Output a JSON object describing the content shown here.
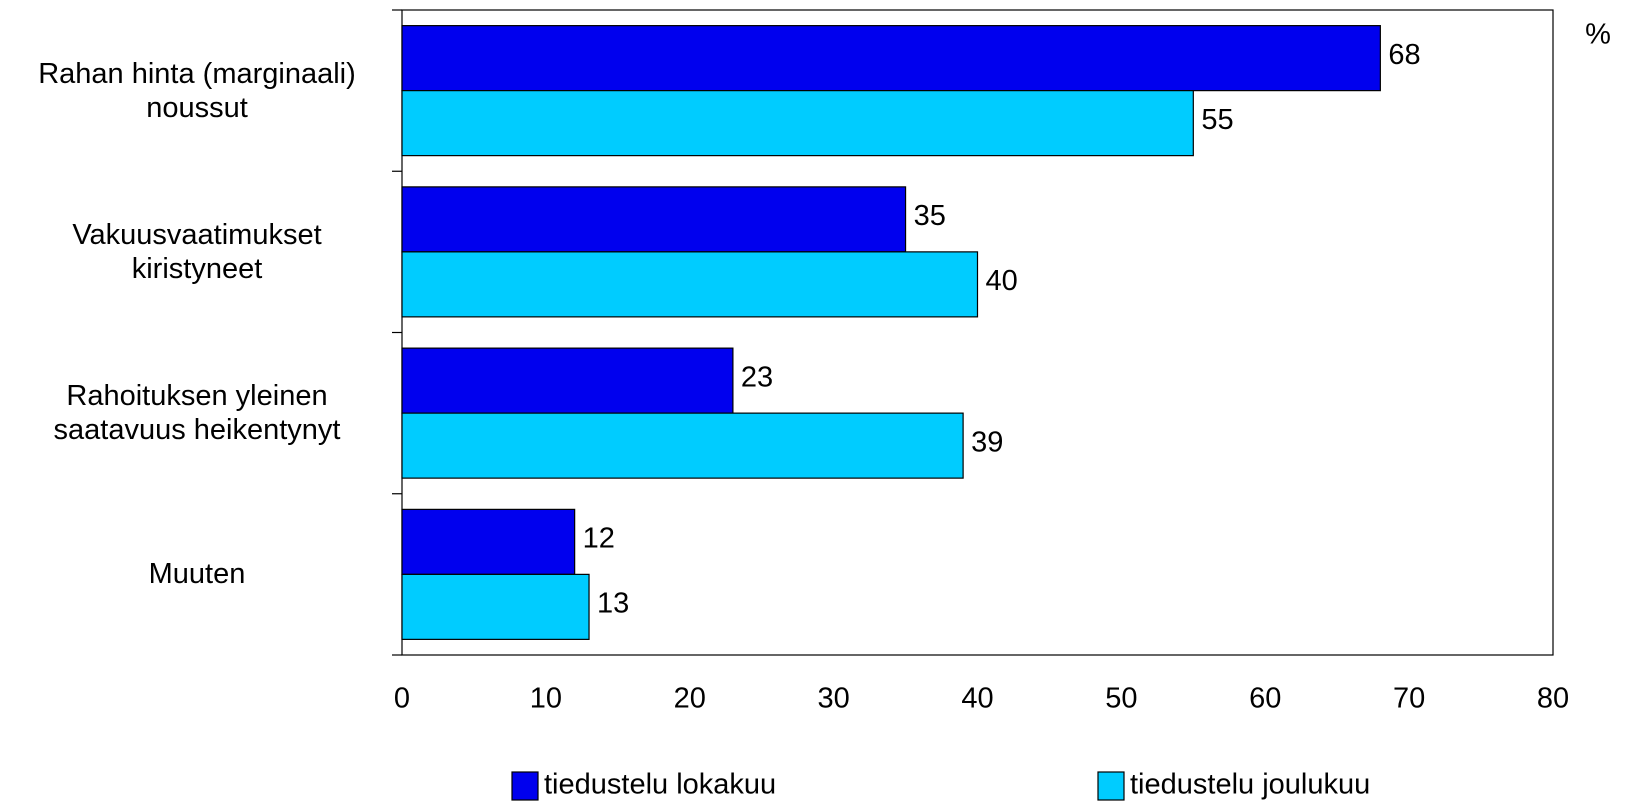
{
  "chart_data": {
    "type": "bar",
    "orientation": "horizontal",
    "unit_label": "%",
    "categories": [
      "Rahan hinta (marginaali)\nnoussut",
      "Vakuusvaatimukset\nkiristyneet",
      "Rahoituksen yleinen\nsaatavuus heikentynyt",
      "Muuten"
    ],
    "series": [
      {
        "name": "tiedustelu lokakuu",
        "color": "#0000ee",
        "values": [
          68,
          35,
          23,
          12
        ]
      },
      {
        "name": "tiedustelu joulukuu",
        "color": "#00ccff",
        "values": [
          55,
          40,
          39,
          13
        ]
      }
    ],
    "xlim": [
      0,
      80
    ],
    "xticks": [
      0,
      10,
      20,
      30,
      40,
      50,
      60,
      70,
      80
    ],
    "grid": false,
    "legend": "bottom"
  }
}
